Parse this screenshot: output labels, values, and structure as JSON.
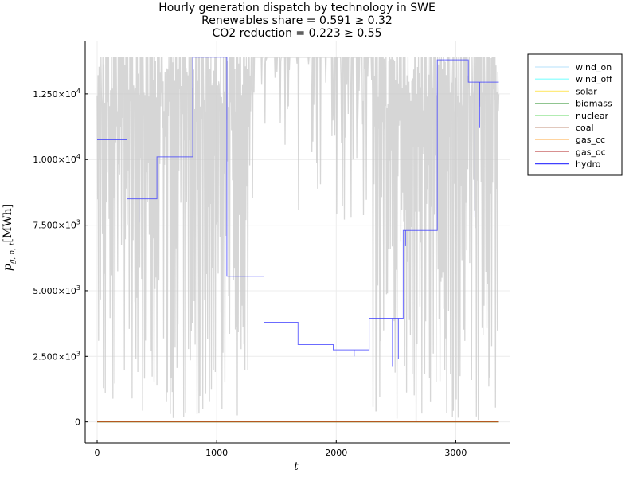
{
  "chart_data": {
    "type": "line",
    "title_lines": [
      "Hourly generation dispatch by technology in SWE",
      "Renewables share = 0.591 ≥ 0.32",
      "CO2 reduction = 0.223 ≥ 0.55"
    ],
    "xlabel": "t",
    "ylabel": "p_{g,n,t} [MWh]",
    "ylabel_parts": {
      "main": "p",
      "sub": "g, n, t",
      "unit": "[MWh]"
    },
    "xlim": [
      -100,
      3450
    ],
    "ylim": [
      -800,
      14500
    ],
    "x_ticks": [
      0,
      1000,
      2000,
      3000
    ],
    "x_tick_labels": [
      "0",
      "1000",
      "2000",
      "3000"
    ],
    "y_ticks": [
      0,
      2500,
      5000,
      7500,
      10000,
      12500
    ],
    "y_tick_labels": [
      {
        "mant": "0",
        "exp": ""
      },
      {
        "mant": "2.500×10",
        "exp": "3"
      },
      {
        "mant": "5.000×10",
        "exp": "3"
      },
      {
        "mant": "7.500×10",
        "exp": "3"
      },
      {
        "mant": "1.000×10",
        "exp": "4"
      },
      {
        "mant": "1.250×10",
        "exp": "4"
      }
    ],
    "grid": true,
    "legend_position": "outer top-right",
    "legend": [
      {
        "name": "wind_on",
        "color": "#87cefa"
      },
      {
        "name": "wind_off",
        "color": "#00ffff"
      },
      {
        "name": "solar",
        "color": "#ffd700"
      },
      {
        "name": "biomass",
        "color": "#228b22"
      },
      {
        "name": "nuclear",
        "color": "#32cd32"
      },
      {
        "name": "coal",
        "color": "#a0522d"
      },
      {
        "name": "gas_cc",
        "color": "#ff8c00"
      },
      {
        "name": "gas_oc",
        "color": "#b22222"
      },
      {
        "name": "hydro",
        "color": "#0000ff"
      }
    ],
    "zero_series": [
      "wind_on",
      "wind_off",
      "solar",
      "biomass",
      "nuclear",
      "coal",
      "gas_cc",
      "gas_oc"
    ],
    "x_range": [
      0,
      3360
    ],
    "hydro_steps": [
      {
        "x0": 0,
        "x1": 250,
        "y": 10750
      },
      {
        "x0": 250,
        "x1": 500,
        "y": 8500
      },
      {
        "x0": 500,
        "x1": 800,
        "y": 10100
      },
      {
        "x0": 800,
        "x1": 1085,
        "y": 13900
      },
      {
        "x0": 1085,
        "x1": 1395,
        "y": 5550
      },
      {
        "x0": 1395,
        "x1": 1680,
        "y": 3800
      },
      {
        "x0": 1680,
        "x1": 1975,
        "y": 2950
      },
      {
        "x0": 1975,
        "x1": 2275,
        "y": 2750
      },
      {
        "x0": 2275,
        "x1": 2560,
        "y": 3950
      },
      {
        "x0": 2560,
        "x1": 2845,
        "y": 7300
      },
      {
        "x0": 2845,
        "x1": 3105,
        "y": 13800
      },
      {
        "x0": 3105,
        "x1": 3360,
        "y": 12950
      }
    ],
    "hydro_dips": [
      {
        "x": 350,
        "y": 7600
      },
      {
        "x": 2150,
        "y": 2500
      },
      {
        "x": 2470,
        "y": 2100
      },
      {
        "x": 2520,
        "y": 2400
      },
      {
        "x": 2580,
        "y": 6700
      },
      {
        "x": 3160,
        "y": 7800
      },
      {
        "x": 3200,
        "y": 11200
      }
    ],
    "gray_series": {
      "color": "#c8c8c8",
      "max": 13900,
      "min": 0,
      "baseline_band": [
        11800,
        13900
      ],
      "dense_low_region_x": [
        1300,
        2300
      ]
    }
  }
}
